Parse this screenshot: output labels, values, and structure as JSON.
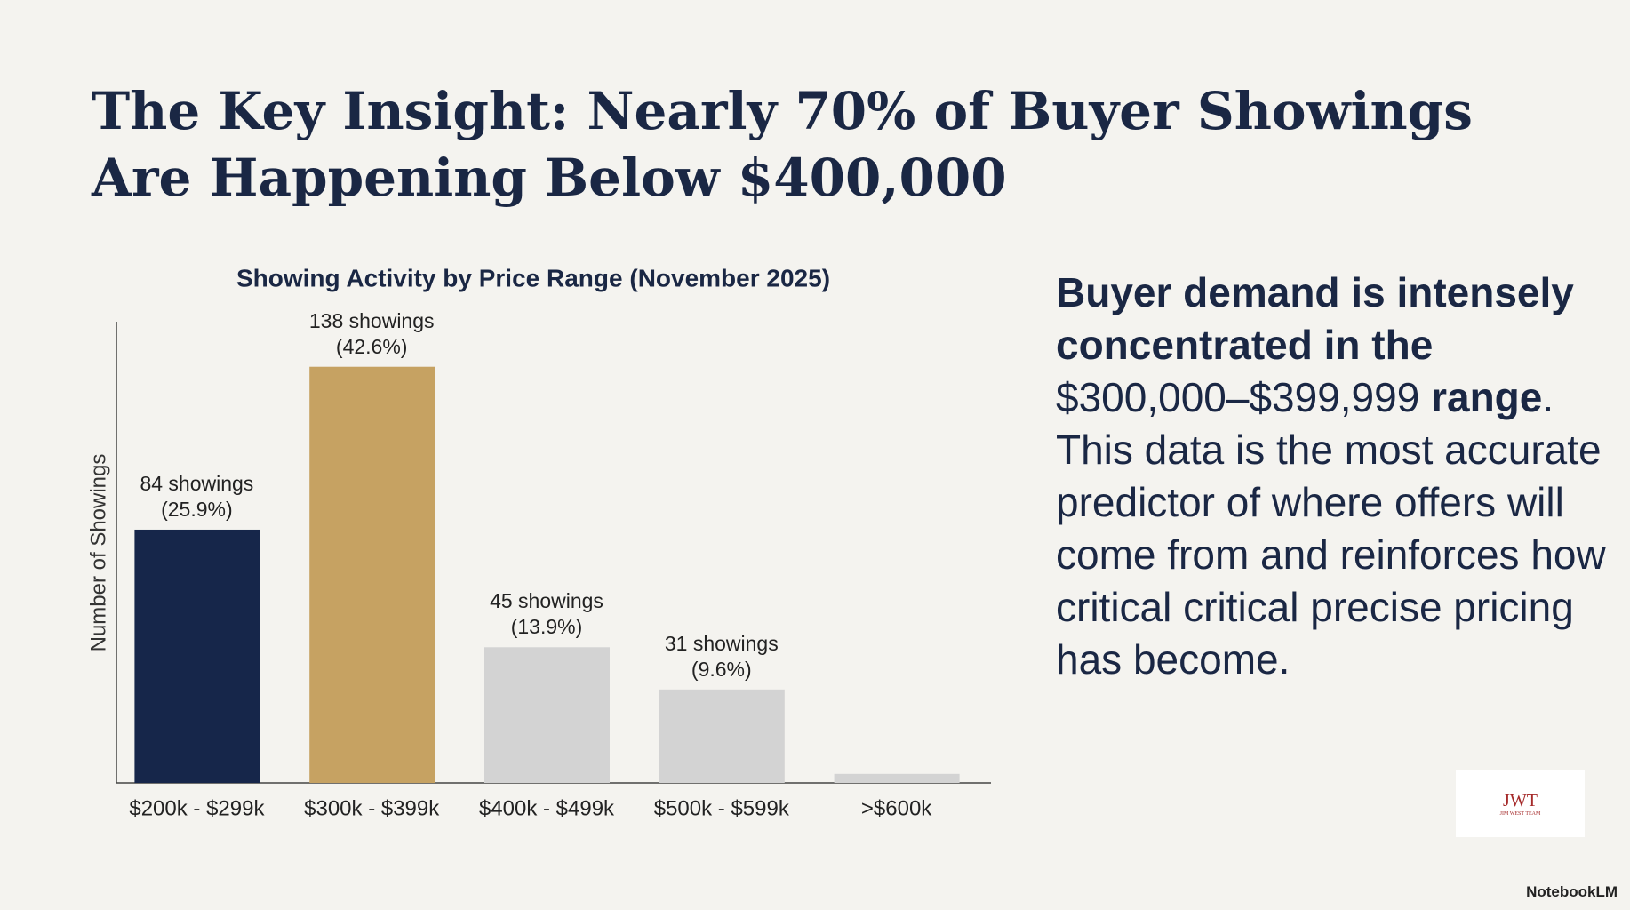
{
  "header": {
    "title": "The Key Insight: Nearly 70% of Buyer Showings Are Happening Below $400,000"
  },
  "chart_data": {
    "type": "bar",
    "title": "Showing Activity by Price Range (November 2025)",
    "y_label": "Number of Showings",
    "categories": [
      "$200k - $299k",
      "$300k - $399k",
      "$400k - $499k",
      "$500k - $599k",
      ">$600k"
    ],
    "values": [
      84,
      138,
      45,
      31,
      3
    ],
    "value_labels": [
      "84 showings (25.9%)",
      "138 showings (42.6%)",
      "45 showings (13.9%)",
      "31 showings (9.6%)",
      null
    ],
    "colors": [
      "#16264a",
      "#c6a262",
      "#d3d3d3",
      "#d3d3d3",
      "#d3d3d3"
    ],
    "ylim": [
      0,
      150
    ]
  },
  "side_text": [
    {
      "text": "Buyer demand is intensely concentrated in the",
      "bold": true
    },
    {
      "text": " $300,000–$399,999 ",
      "bold": false
    },
    {
      "text": "range",
      "bold": true
    },
    {
      "text": ". This data is the most accurate predictor of where offers will come from and reinforces how critical critical precise pricing has become.",
      "bold": false
    }
  ],
  "logo": {
    "mark": "JWT",
    "caption": "JIM WEST TEAM"
  },
  "watermark": "NotebookLM"
}
